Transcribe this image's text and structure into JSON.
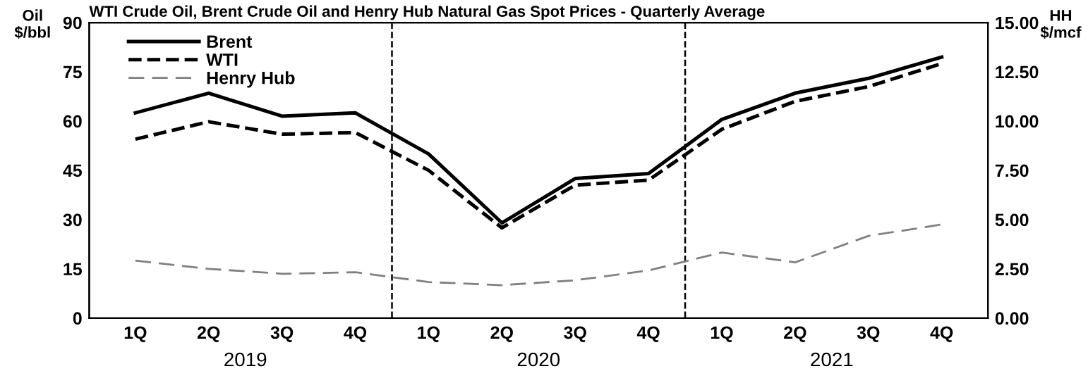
{
  "chart_data": {
    "type": "line",
    "title": "WTI Crude Oil, Brent Crude Oil and Henry Hub Natural Gas Spot Prices - Quarterly Average",
    "ylabel": "Oil\n$/bbl",
    "y2label": "HH\n$/mcf",
    "categories": [
      "1Q",
      "2Q",
      "3Q",
      "4Q",
      "1Q",
      "2Q",
      "3Q",
      "4Q",
      "1Q",
      "2Q",
      "3Q",
      "4Q"
    ],
    "annotations": [
      "2019",
      "2020",
      "2021"
    ],
    "series": [
      {
        "name": "Brent",
        "color": "#000000",
        "line_style": "solid",
        "values": [
          62.5,
          68.5,
          61.5,
          62.5,
          50,
          29,
          42.5,
          44,
          60.5,
          68.5,
          73,
          79.5
        ]
      },
      {
        "name": "WTI",
        "color": "#000000",
        "line_style": "dashed",
        "values": [
          54.5,
          59.8,
          56,
          56.5,
          45,
          27.5,
          40.5,
          42,
          57.5,
          66,
          70.5,
          77.5
        ]
      },
      {
        "name": "Henry Hub",
        "color": "#808080",
        "line_style": "dashed",
        "axis": "y2",
        "values": [
          2.92,
          2.5,
          2.25,
          2.33,
          1.83,
          1.67,
          1.92,
          2.42,
          3.33,
          2.83,
          4.17,
          4.75
        ]
      }
    ],
    "ylim": [
      0,
      90
    ],
    "yticks": [
      0,
      15,
      30,
      45,
      60,
      75,
      90
    ],
    "y2lim": [
      0,
      15
    ],
    "y2ticks": [
      {
        "value": 0,
        "label": "0.00"
      },
      {
        "value": 2.5,
        "label": "2.50"
      },
      {
        "value": 5,
        "label": "5.00"
      },
      {
        "value": 7.5,
        "label": "7.50"
      },
      {
        "value": 10,
        "label": "10.00"
      },
      {
        "value": 12.5,
        "label": "12.50"
      },
      {
        "value": 15,
        "label": "15.00"
      }
    ],
    "grid": false,
    "legend": "top left",
    "marker": "none"
  }
}
